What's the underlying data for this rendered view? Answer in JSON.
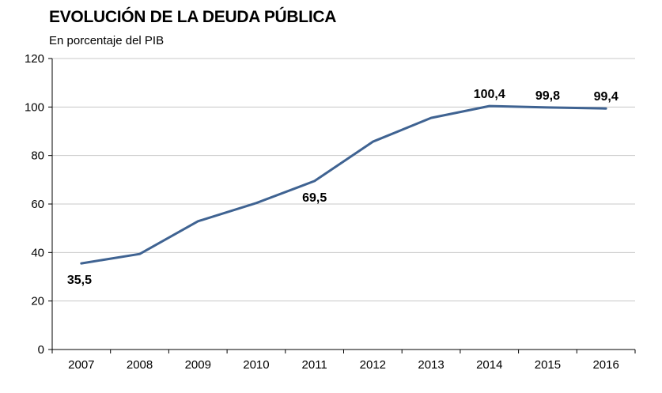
{
  "chart_data": {
    "type": "line",
    "title": "EVOLUCIÓN DE LA DEUDA PÚBLICA",
    "subtitle": "En porcentaje del PIB",
    "xlabel": "",
    "ylabel": "",
    "categories": [
      "2007",
      "2008",
      "2009",
      "2010",
      "2011",
      "2012",
      "2013",
      "2014",
      "2015",
      "2016"
    ],
    "series": [
      {
        "name": "Deuda pública",
        "values": [
          35.5,
          39.4,
          52.9,
          60.4,
          69.5,
          85.7,
          95.5,
          100.4,
          99.8,
          99.4
        ],
        "color": "#3f6392"
      }
    ],
    "data_labels": [
      {
        "index": 0,
        "text": "35,5",
        "position": "below"
      },
      {
        "index": 4,
        "text": "69,5",
        "position": "below"
      },
      {
        "index": 7,
        "text": "100,4",
        "position": "above"
      },
      {
        "index": 8,
        "text": "99,8",
        "position": "above"
      },
      {
        "index": 9,
        "text": "99,4",
        "position": "above"
      }
    ],
    "ylim": [
      0,
      120
    ],
    "yticks": [
      0,
      20,
      40,
      60,
      80,
      100,
      120
    ],
    "grid": true,
    "legend": "none"
  }
}
